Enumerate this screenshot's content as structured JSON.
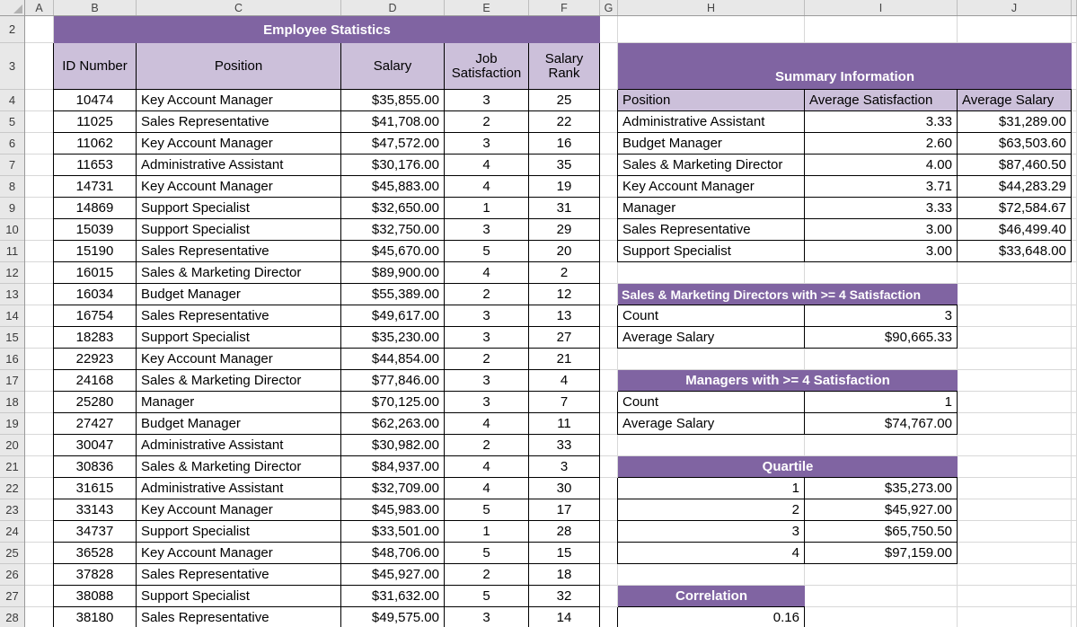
{
  "app": {
    "kind": "spreadsheet"
  },
  "colors": {
    "banner_purple": "#8064A2",
    "header_light_purple": "#CCC0DA",
    "gridline": "#D8D8D8",
    "chrome_bg": "#E8E8E8",
    "cell_border": "#000000"
  },
  "column_headers": [
    "A",
    "B",
    "C",
    "D",
    "E",
    "F",
    "G",
    "H",
    "I",
    "J"
  ],
  "row_headers": [
    2,
    3,
    4,
    5,
    6,
    7,
    8,
    9,
    10,
    11,
    12,
    13,
    14,
    15,
    16,
    17,
    18,
    19,
    20,
    21,
    22,
    23,
    24,
    25,
    26,
    27,
    28
  ],
  "main_table": {
    "title": "Employee Statistics",
    "columns": [
      "ID Number",
      "Position",
      "Salary",
      "Job Satisfaction",
      "Salary Rank"
    ],
    "rows": [
      [
        "10474",
        "Key Account Manager",
        "$35,855.00",
        "3",
        "25"
      ],
      [
        "11025",
        "Sales Representative",
        "$41,708.00",
        "2",
        "22"
      ],
      [
        "11062",
        "Key Account Manager",
        "$47,572.00",
        "3",
        "16"
      ],
      [
        "11653",
        "Administrative Assistant",
        "$30,176.00",
        "4",
        "35"
      ],
      [
        "14731",
        "Key Account Manager",
        "$45,883.00",
        "4",
        "19"
      ],
      [
        "14869",
        "Support Specialist",
        "$32,650.00",
        "1",
        "31"
      ],
      [
        "15039",
        "Support Specialist",
        "$32,750.00",
        "3",
        "29"
      ],
      [
        "15190",
        "Sales Representative",
        "$45,670.00",
        "5",
        "20"
      ],
      [
        "16015",
        "Sales & Marketing Director",
        "$89,900.00",
        "4",
        "2"
      ],
      [
        "16034",
        "Budget Manager",
        "$55,389.00",
        "2",
        "12"
      ],
      [
        "16754",
        "Sales Representative",
        "$49,617.00",
        "3",
        "13"
      ],
      [
        "18283",
        "Support Specialist",
        "$35,230.00",
        "3",
        "27"
      ],
      [
        "22923",
        "Key Account Manager",
        "$44,854.00",
        "2",
        "21"
      ],
      [
        "24168",
        "Sales & Marketing Director",
        "$77,846.00",
        "3",
        "4"
      ],
      [
        "25280",
        "Manager",
        "$70,125.00",
        "3",
        "7"
      ],
      [
        "27427",
        "Budget Manager",
        "$62,263.00",
        "4",
        "11"
      ],
      [
        "30047",
        "Administrative Assistant",
        "$30,982.00",
        "2",
        "33"
      ],
      [
        "30836",
        "Sales & Marketing Director",
        "$84,937.00",
        "4",
        "3"
      ],
      [
        "31615",
        "Administrative Assistant",
        "$32,709.00",
        "4",
        "30"
      ],
      [
        "33143",
        "Key Account Manager",
        "$45,983.00",
        "5",
        "17"
      ],
      [
        "34737",
        "Support Specialist",
        "$33,501.00",
        "1",
        "28"
      ],
      [
        "36528",
        "Key Account Manager",
        "$48,706.00",
        "5",
        "15"
      ],
      [
        "37828",
        "Sales Representative",
        "$45,927.00",
        "2",
        "18"
      ],
      [
        "38088",
        "Support Specialist",
        "$31,632.00",
        "5",
        "32"
      ],
      [
        "38180",
        "Sales Representative",
        "$49,575.00",
        "3",
        "14"
      ]
    ]
  },
  "summary_table": {
    "title": "Summary Information",
    "columns": [
      "Position",
      "Average Satisfaction",
      "Average Salary"
    ],
    "rows": [
      [
        "Administrative Assistant",
        "3.33",
        "$31,289.00"
      ],
      [
        "Budget Manager",
        "2.60",
        "$63,503.60"
      ],
      [
        "Sales & Marketing Director",
        "4.00",
        "$87,460.50"
      ],
      [
        "Key Account Manager",
        "3.71",
        "$44,283.29"
      ],
      [
        "Manager",
        "3.33",
        "$72,584.67"
      ],
      [
        "Sales Representative",
        "3.00",
        "$46,499.40"
      ],
      [
        "Support Specialist",
        "3.00",
        "$33,648.00"
      ]
    ]
  },
  "smd_section": {
    "title": "Sales & Marketing Directors with >= 4 Satisfaction",
    "rows": [
      [
        "Count",
        "3"
      ],
      [
        "Average Salary",
        "$90,665.33"
      ]
    ]
  },
  "managers_section": {
    "title": "Managers with >= 4 Satisfaction",
    "rows": [
      [
        "Count",
        "1"
      ],
      [
        "Average Salary",
        "$74,767.00"
      ]
    ]
  },
  "quartile_section": {
    "title": "Quartile",
    "rows": [
      [
        "1",
        "$35,273.00"
      ],
      [
        "2",
        "$45,927.00"
      ],
      [
        "3",
        "$65,750.50"
      ],
      [
        "4",
        "$97,159.00"
      ]
    ]
  },
  "correlation_section": {
    "title": "Correlation",
    "value": "0.16"
  }
}
